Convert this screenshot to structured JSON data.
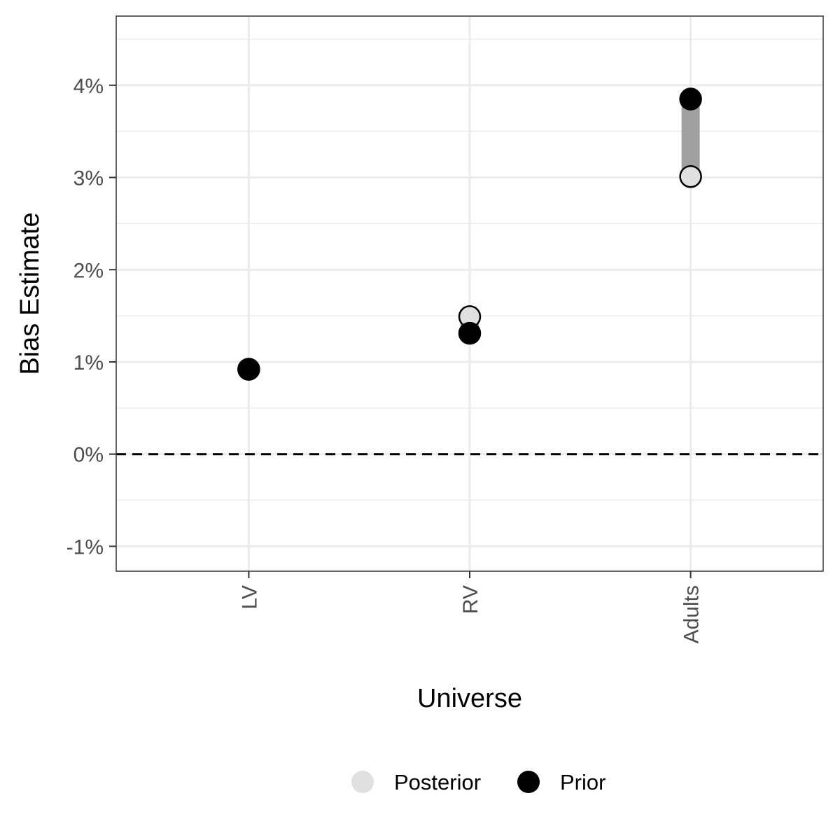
{
  "chart_data": {
    "type": "scatter",
    "xlabel": "Universe",
    "ylabel": "Bias Estimate",
    "categories": [
      "LV",
      "RV",
      "Adults"
    ],
    "ylim": [
      -1.27,
      4.75
    ],
    "y_ticks": [
      -1,
      0,
      1,
      2,
      3,
      4
    ],
    "y_tick_labels": [
      "-1%",
      "0%",
      "1%",
      "2%",
      "3%",
      "4%"
    ],
    "reference_line": {
      "y": 0,
      "style": "dashed"
    },
    "grid": true,
    "legend_position": "bottom",
    "series": [
      {
        "name": "Posterior",
        "values": [
          0.92,
          1.49,
          3.01
        ],
        "color": "#e0e0e0"
      },
      {
        "name": "Prior",
        "values": [
          0.92,
          1.31,
          3.85
        ],
        "color": "#000000"
      }
    ],
    "connector_color": "#a0a0a0"
  }
}
